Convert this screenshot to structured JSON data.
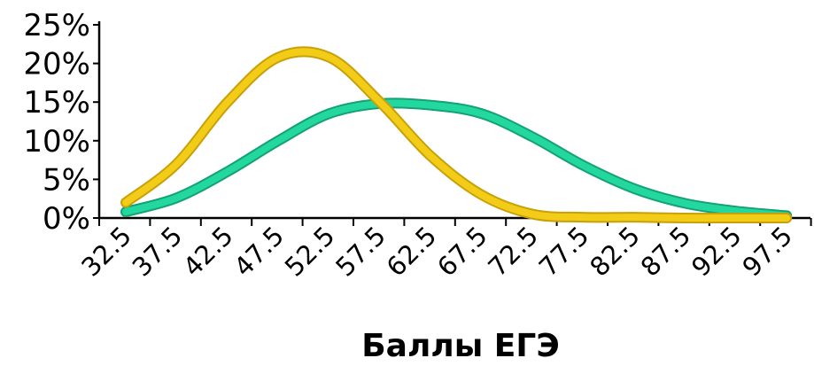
{
  "chart_data": {
    "type": "line",
    "title": "",
    "xlabel": "Баллы ЕГЭ",
    "ylabel": "",
    "categories": [
      "32.5",
      "37.5",
      "42.5",
      "47.5",
      "52.5",
      "57.5",
      "62.5",
      "67.5",
      "72.5",
      "77.5",
      "82.5",
      "87.5",
      "92.5",
      "97.5"
    ],
    "x": [
      32.5,
      37.5,
      42.5,
      47.5,
      52.5,
      57.5,
      62.5,
      67.5,
      72.5,
      77.5,
      82.5,
      87.5,
      92.5,
      97.5
    ],
    "yticks": [
      0,
      5,
      10,
      15,
      20,
      25
    ],
    "ytick_labels": [
      "0%",
      "5%",
      "10%",
      "15%",
      "20%",
      "25%"
    ],
    "ylim": [
      0,
      25
    ],
    "grid": false,
    "smooth": true,
    "series": [
      {
        "color": "#f2cc16",
        "outline": "#c8a10a",
        "values": [
          2.0,
          7.0,
          15.0,
          20.8,
          20.8,
          15.0,
          8.0,
          3.0,
          0.5,
          0.1,
          0.1,
          0.0,
          0.0,
          0.0
        ]
      },
      {
        "color": "#22d89e",
        "outline": "#14a274",
        "values": [
          0.8,
          2.6,
          6.0,
          10.0,
          13.5,
          14.8,
          14.6,
          13.5,
          10.5,
          6.8,
          3.8,
          1.9,
          0.9,
          0.3
        ]
      }
    ]
  }
}
